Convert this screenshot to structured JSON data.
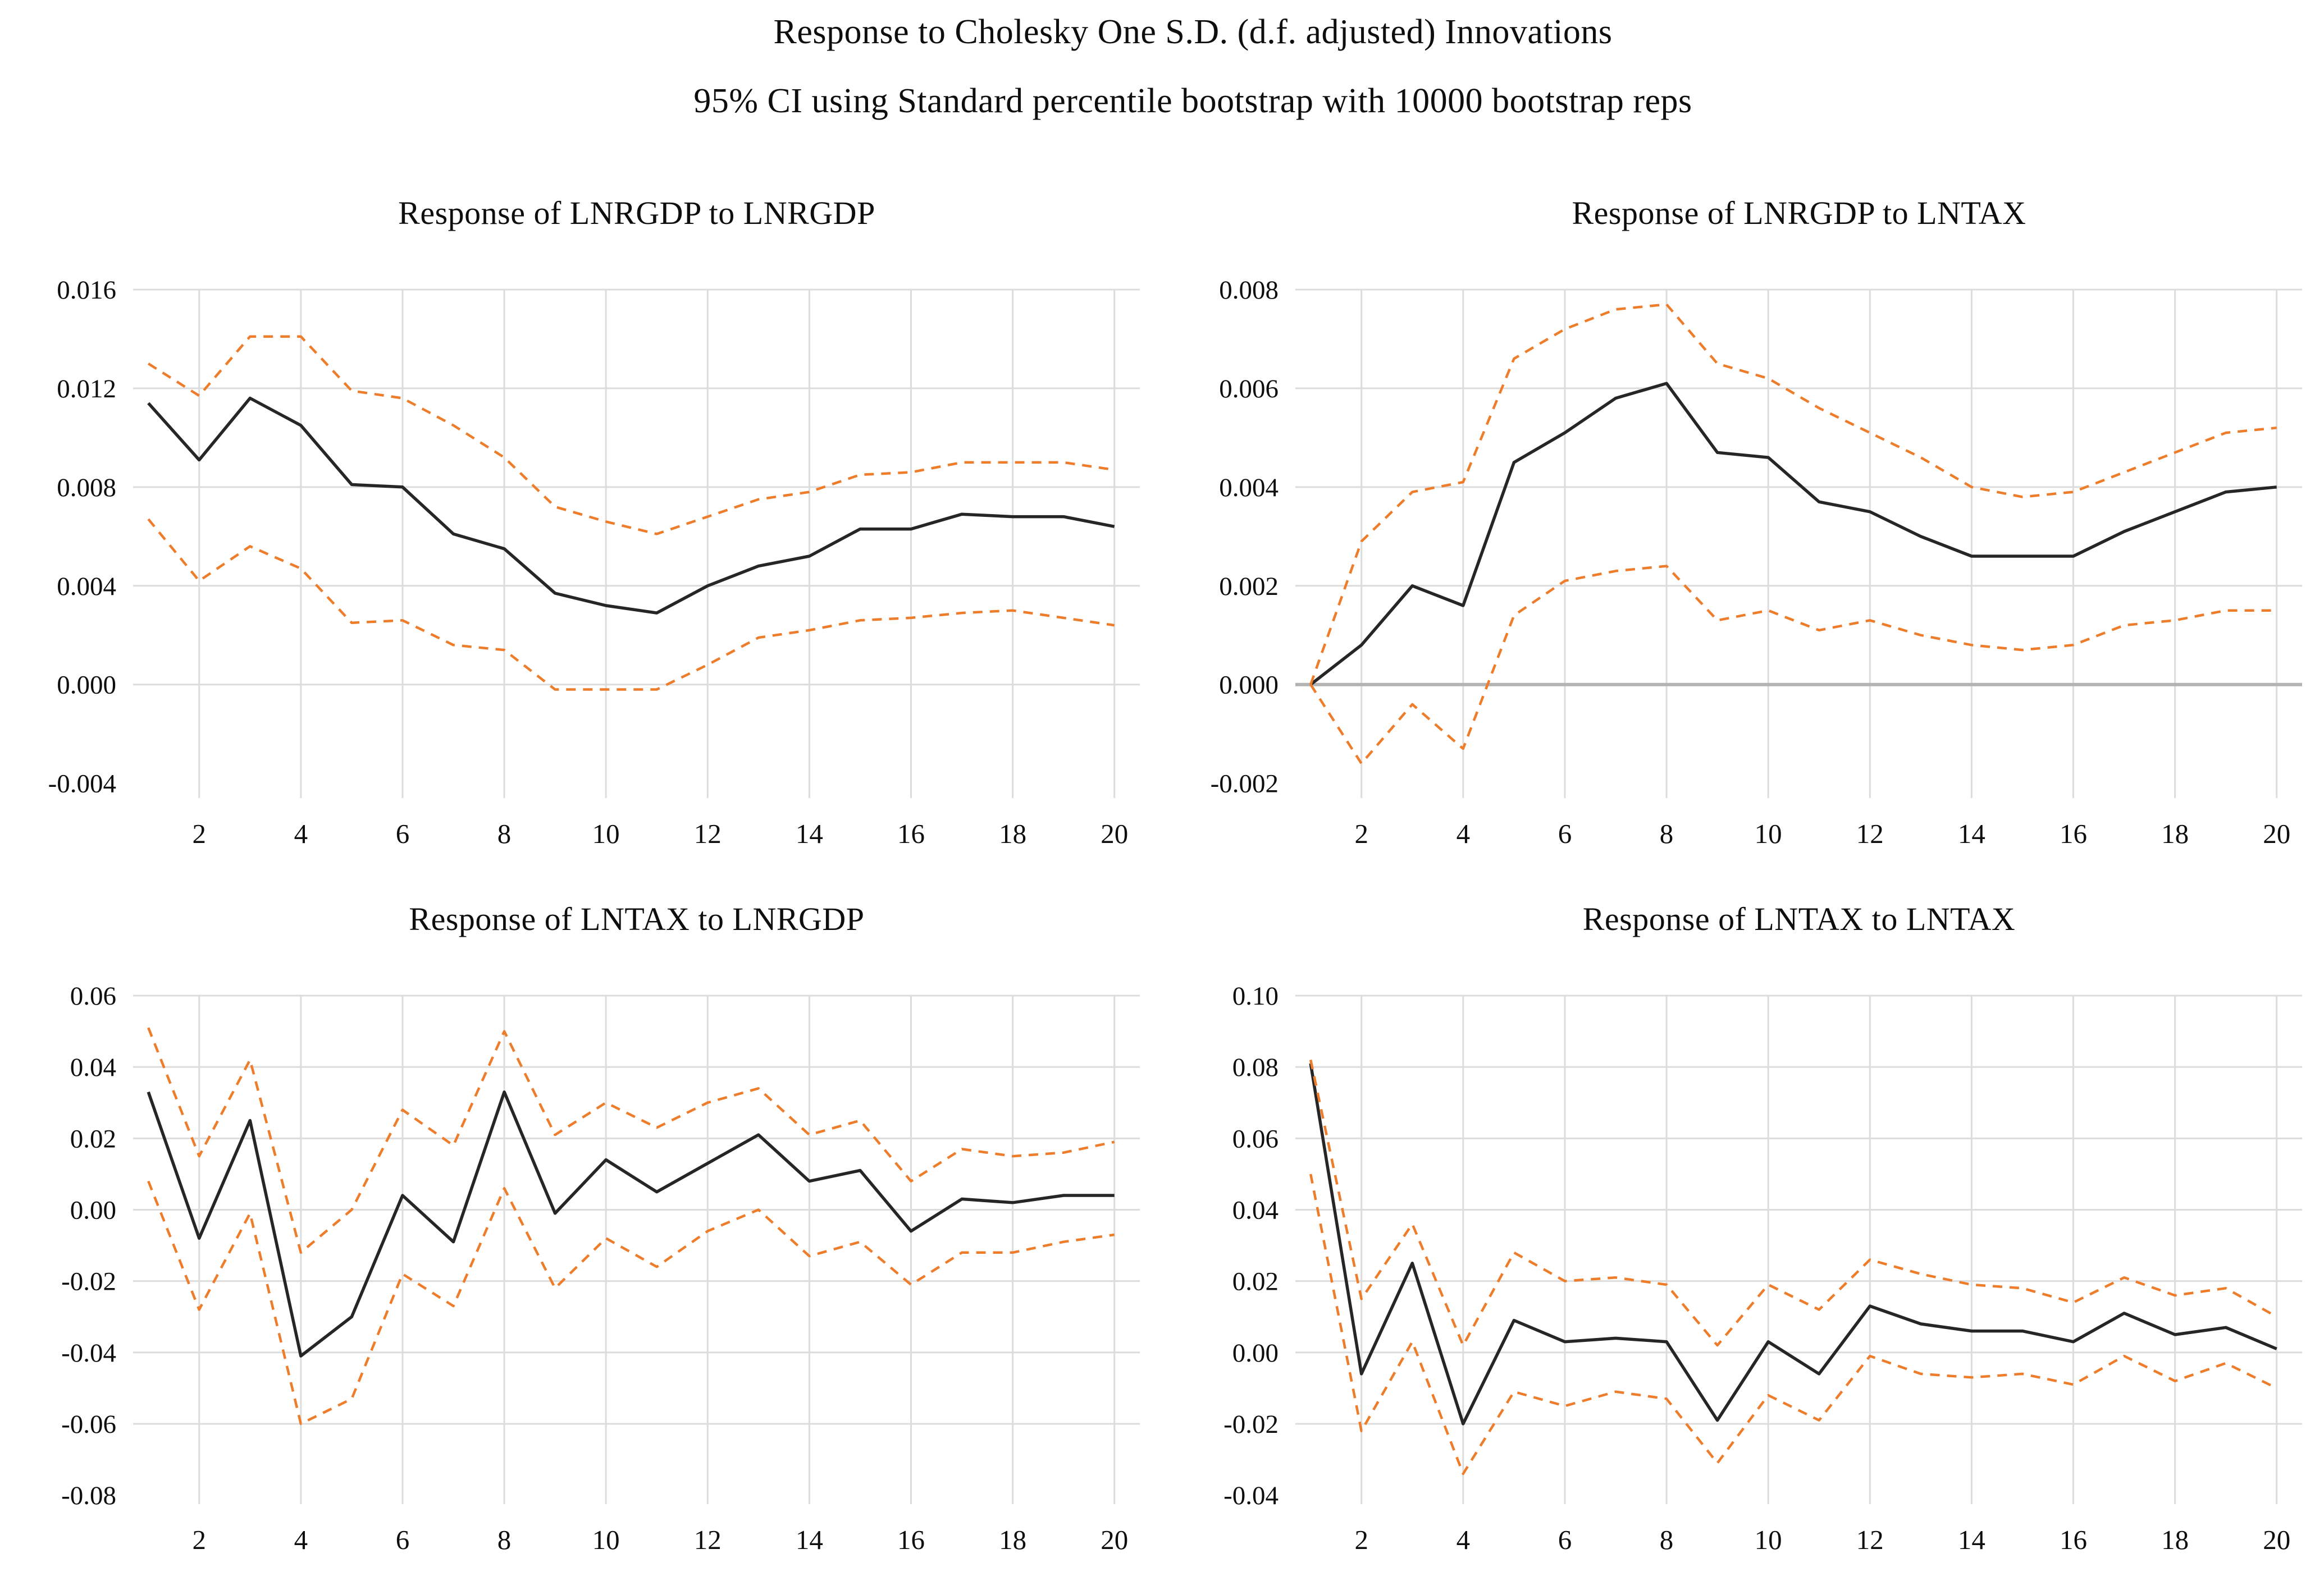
{
  "figure": {
    "title": "Response to Cholesky One S.D. (d.f. adjusted) Innovations",
    "subtitle": "95% CI using Standard percentile bootstrap with 10000 bootstrap reps"
  },
  "colors": {
    "response_line": "#262626",
    "ci_band_line": "#ee7d2b",
    "gridline": "#dcdcdc",
    "zero_line": "#b3b3b3",
    "text": "#0e0e0e",
    "background": "#ffffff"
  },
  "chart_data": [
    {
      "type": "line",
      "title": "Response of LNRGDP to LNRGDP",
      "legend": "none",
      "grid": "on",
      "zero_line": false,
      "periods": [
        1,
        2,
        3,
        4,
        5,
        6,
        7,
        8,
        9,
        10,
        11,
        12,
        13,
        14,
        15,
        16,
        17,
        18,
        19,
        20
      ],
      "x_ticks": [
        2,
        4,
        6,
        8,
        10,
        12,
        14,
        16,
        18,
        20
      ],
      "ytick_values": [
        0.016,
        0.012,
        0.008,
        0.004,
        0.0,
        -0.004
      ],
      "ytick_labels": [
        "0.016",
        "0.012",
        "0.008",
        "0.004",
        "0.000",
        "-0.004"
      ],
      "ylim": [
        -0.0046,
        0.016
      ],
      "xlim": [
        1,
        20
      ],
      "series": [
        {
          "name": "response",
          "values": [
            0.0114,
            0.0091,
            0.0116,
            0.0105,
            0.0081,
            0.008,
            0.0061,
            0.0055,
            0.0037,
            0.0032,
            0.0029,
            0.004,
            0.0048,
            0.0052,
            0.0063,
            0.0063,
            0.0069,
            0.0068,
            0.0068,
            0.0064
          ]
        },
        {
          "name": "upper_95_ci",
          "values": [
            0.013,
            0.0117,
            0.0141,
            0.0141,
            0.0119,
            0.0116,
            0.0105,
            0.0092,
            0.0072,
            0.0066,
            0.0061,
            0.0068,
            0.0075,
            0.0078,
            0.0085,
            0.0086,
            0.009,
            0.009,
            0.009,
            0.0087
          ]
        },
        {
          "name": "lower_95_ci",
          "values": [
            0.0067,
            0.0042,
            0.0056,
            0.0047,
            0.0025,
            0.0026,
            0.0016,
            0.0014,
            -0.0002,
            -0.0002,
            -0.0002,
            0.0008,
            0.0019,
            0.0022,
            0.0026,
            0.0027,
            0.0029,
            0.003,
            0.0027,
            0.0024
          ]
        }
      ]
    },
    {
      "type": "line",
      "title": "Response of LNRGDP to LNTAX",
      "legend": "none",
      "grid": "on",
      "zero_line": true,
      "periods": [
        1,
        2,
        3,
        4,
        5,
        6,
        7,
        8,
        9,
        10,
        11,
        12,
        13,
        14,
        15,
        16,
        17,
        18,
        19,
        20
      ],
      "x_ticks": [
        2,
        4,
        6,
        8,
        10,
        12,
        14,
        16,
        18,
        20
      ],
      "ytick_values": [
        0.008,
        0.006,
        0.004,
        0.002,
        0.0,
        -0.002
      ],
      "ytick_labels": [
        "0.008",
        "0.006",
        "0.004",
        "0.002",
        "0.000",
        "-0.002"
      ],
      "ylim": [
        -0.0023,
        0.008
      ],
      "xlim": [
        1,
        20
      ],
      "series": [
        {
          "name": "response",
          "values": [
            0.0,
            0.0008,
            0.002,
            0.0016,
            0.0045,
            0.0051,
            0.0058,
            0.0061,
            0.0047,
            0.0046,
            0.0037,
            0.0035,
            0.003,
            0.0026,
            0.0026,
            0.0026,
            0.0031,
            0.0035,
            0.0039,
            0.004
          ]
        },
        {
          "name": "upper_95_ci",
          "values": [
            0.0,
            0.0029,
            0.0039,
            0.0041,
            0.0066,
            0.0072,
            0.0076,
            0.0077,
            0.0065,
            0.0062,
            0.0056,
            0.0051,
            0.0046,
            0.004,
            0.0038,
            0.0039,
            0.0043,
            0.0047,
            0.0051,
            0.0052
          ]
        },
        {
          "name": "lower_95_ci",
          "values": [
            0.0,
            -0.0016,
            -0.0004,
            -0.0013,
            0.0014,
            0.0021,
            0.0023,
            0.0024,
            0.0013,
            0.0015,
            0.0011,
            0.0013,
            0.001,
            0.0008,
            0.0007,
            0.0008,
            0.0012,
            0.0013,
            0.0015,
            0.0015
          ]
        }
      ]
    },
    {
      "type": "line",
      "title": "Response of LNTAX to LNRGDP",
      "legend": "none",
      "grid": "on",
      "zero_line": false,
      "periods": [
        1,
        2,
        3,
        4,
        5,
        6,
        7,
        8,
        9,
        10,
        11,
        12,
        13,
        14,
        15,
        16,
        17,
        18,
        19,
        20
      ],
      "x_ticks": [
        2,
        4,
        6,
        8,
        10,
        12,
        14,
        16,
        18,
        20
      ],
      "ytick_values": [
        0.06,
        0.04,
        0.02,
        0.0,
        -0.02,
        -0.04,
        -0.06,
        -0.08
      ],
      "ytick_labels": [
        "0.06",
        "0.04",
        "0.02",
        "0.00",
        "-0.02",
        "-0.04",
        "-0.06",
        "-0.08"
      ],
      "ylim": [
        -0.0825,
        0.06
      ],
      "xlim": [
        1,
        20
      ],
      "series": [
        {
          "name": "response",
          "values": [
            0.033,
            -0.008,
            0.025,
            -0.041,
            -0.03,
            0.004,
            -0.009,
            0.033,
            -0.001,
            0.014,
            0.005,
            0.013,
            0.021,
            0.008,
            0.011,
            -0.006,
            0.003,
            0.002,
            0.004,
            0.004
          ]
        },
        {
          "name": "upper_95_ci",
          "values": [
            0.051,
            0.015,
            0.042,
            -0.012,
            0.0,
            0.028,
            0.018,
            0.05,
            0.021,
            0.03,
            0.023,
            0.03,
            0.034,
            0.021,
            0.025,
            0.008,
            0.017,
            0.015,
            0.016,
            0.019
          ]
        },
        {
          "name": "lower_95_ci",
          "values": [
            0.008,
            -0.028,
            -0.001,
            -0.06,
            -0.053,
            -0.018,
            -0.027,
            0.006,
            -0.022,
            -0.008,
            -0.016,
            -0.006,
            0.0,
            -0.013,
            -0.009,
            -0.021,
            -0.012,
            -0.012,
            -0.009,
            -0.007
          ]
        }
      ]
    },
    {
      "type": "line",
      "title": "Response of LNTAX to LNTAX",
      "legend": "none",
      "grid": "on",
      "zero_line": false,
      "periods": [
        1,
        2,
        3,
        4,
        5,
        6,
        7,
        8,
        9,
        10,
        11,
        12,
        13,
        14,
        15,
        16,
        17,
        18,
        19,
        20
      ],
      "x_ticks": [
        2,
        4,
        6,
        8,
        10,
        12,
        14,
        16,
        18,
        20
      ],
      "ytick_values": [
        0.1,
        0.08,
        0.06,
        0.04,
        0.02,
        0.0,
        -0.02,
        -0.04
      ],
      "ytick_labels": [
        "0.10",
        "0.08",
        "0.06",
        "0.04",
        "0.02",
        "0.00",
        "-0.02",
        "-0.04"
      ],
      "ylim": [
        -0.0425,
        0.1
      ],
      "xlim": [
        1,
        20
      ],
      "series": [
        {
          "name": "response",
          "values": [
            0.081,
            -0.006,
            0.025,
            -0.02,
            0.009,
            0.003,
            0.004,
            0.003,
            -0.019,
            0.003,
            -0.006,
            0.013,
            0.008,
            0.006,
            0.006,
            0.003,
            0.011,
            0.005,
            0.007,
            0.001
          ]
        },
        {
          "name": "upper_95_ci",
          "values": [
            0.082,
            0.015,
            0.036,
            0.002,
            0.028,
            0.02,
            0.021,
            0.019,
            0.002,
            0.019,
            0.012,
            0.026,
            0.022,
            0.019,
            0.018,
            0.014,
            0.021,
            0.016,
            0.018,
            0.01
          ]
        },
        {
          "name": "lower_95_ci",
          "values": [
            0.05,
            -0.022,
            0.003,
            -0.034,
            -0.011,
            -0.015,
            -0.011,
            -0.013,
            -0.031,
            -0.012,
            -0.019,
            -0.001,
            -0.006,
            -0.007,
            -0.006,
            -0.009,
            -0.001,
            -0.008,
            -0.003,
            -0.01
          ]
        }
      ]
    }
  ]
}
